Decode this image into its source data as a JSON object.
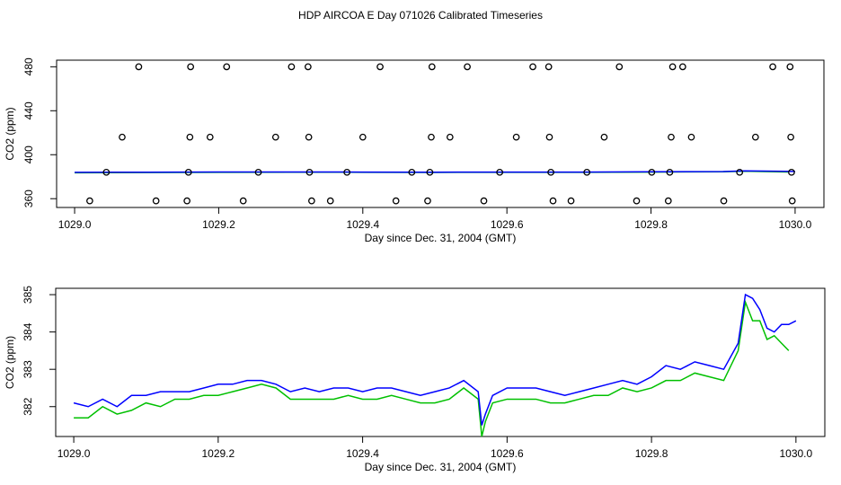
{
  "chart_data": [
    {
      "type": "scatter",
      "title": "HDP AIRCOA E  Day 071026  Calibrated Timeseries",
      "xlabel": "Day since Dec. 31, 2004 (GMT)",
      "ylabel": "CO2 (ppm)",
      "xlim": [
        1028.975,
        1030.04
      ],
      "ylim": [
        352,
        486
      ],
      "xticks": [
        {
          "value": 1029.0,
          "label": "1029.0"
        },
        {
          "value": 1029.2,
          "label": "1029.2"
        },
        {
          "value": 1029.4,
          "label": "1029.4"
        },
        {
          "value": 1029.6,
          "label": "1029.6"
        },
        {
          "value": 1029.8,
          "label": "1029.8"
        },
        {
          "value": 1030.0,
          "label": "1030.0"
        }
      ],
      "yticks": [
        360,
        400,
        440,
        480
      ],
      "color": "#000000",
      "x": [
        1029.089,
        1029.161,
        1029.211,
        1029.301,
        1029.324,
        1029.424,
        1029.496,
        1029.545,
        1029.636,
        1029.658,
        1029.756,
        1029.83,
        1029.844,
        1029.969,
        1029.993,
        1029.066,
        1029.16,
        1029.188,
        1029.279,
        1029.325,
        1029.4,
        1029.495,
        1029.521,
        1029.613,
        1029.659,
        1029.735,
        1029.828,
        1029.856,
        1029.945,
        1029.994,
        1029.044,
        1029.158,
        1029.255,
        1029.326,
        1029.378,
        1029.468,
        1029.493,
        1029.59,
        1029.661,
        1029.711,
        1029.801,
        1029.826,
        1029.923,
        1029.995,
        1029.021,
        1029.113,
        1029.156,
        1029.234,
        1029.329,
        1029.355,
        1029.446,
        1029.49,
        1029.568,
        1029.664,
        1029.689,
        1029.78,
        1029.824,
        1029.901,
        1029.996
      ],
      "values": [
        480,
        480,
        480,
        480,
        480,
        480,
        480,
        480,
        480,
        480,
        480,
        480,
        480,
        480,
        480,
        416,
        416,
        416,
        416,
        416,
        416,
        416,
        416,
        416,
        416,
        416,
        416,
        416,
        416,
        416,
        384,
        384,
        384,
        384,
        384,
        384,
        384,
        384,
        384,
        384,
        384,
        384,
        384,
        384,
        358,
        358,
        358,
        358,
        358,
        358,
        358,
        358,
        358,
        358,
        358,
        358,
        358,
        358,
        358
      ],
      "series": [
        {
          "color": "#00c000",
          "x": [
            1029.0,
            1029.1,
            1029.2,
            1029.3,
            1029.4,
            1029.5,
            1029.6,
            1029.7,
            1029.8,
            1029.9,
            1029.93,
            1029.99
          ],
          "values": [
            383.6,
            383.8,
            384.0,
            384.1,
            384.0,
            383.9,
            384.0,
            384.0,
            384.2,
            384.5,
            385.0,
            384.3
          ]
        },
        {
          "color": "#0000ff",
          "x": [
            1029.0,
            1029.1,
            1029.2,
            1029.3,
            1029.4,
            1029.5,
            1029.6,
            1029.7,
            1029.8,
            1029.9,
            1029.93,
            1030.0
          ],
          "values": [
            384.0,
            384.1,
            384.3,
            384.3,
            384.2,
            384.1,
            384.2,
            384.2,
            384.5,
            384.7,
            385.3,
            384.8
          ]
        }
      ]
    },
    {
      "type": "line",
      "xlabel": "Day since Dec. 31, 2004 (GMT)",
      "ylabel": "CO2 (ppm)",
      "xlim": [
        1028.975,
        1030.04
      ],
      "ylim": [
        381.2,
        385.17
      ],
      "xticks": [
        {
          "value": 1029.0,
          "label": "1029.0"
        },
        {
          "value": 1029.2,
          "label": "1029.2"
        },
        {
          "value": 1029.4,
          "label": "1029.4"
        },
        {
          "value": 1029.6,
          "label": "1029.6"
        },
        {
          "value": 1029.8,
          "label": "1029.8"
        },
        {
          "value": 1030.0,
          "label": "1030.0"
        }
      ],
      "yticks": [
        382,
        383,
        384,
        385
      ],
      "series": [
        {
          "color": "#00c000",
          "x": [
            1029.0,
            1029.02,
            1029.04,
            1029.06,
            1029.08,
            1029.1,
            1029.12,
            1029.14,
            1029.16,
            1029.18,
            1029.2,
            1029.22,
            1029.24,
            1029.26,
            1029.28,
            1029.3,
            1029.32,
            1029.34,
            1029.36,
            1029.38,
            1029.4,
            1029.42,
            1029.44,
            1029.46,
            1029.48,
            1029.5,
            1029.52,
            1029.54,
            1029.56,
            1029.565,
            1029.57,
            1029.58,
            1029.6,
            1029.62,
            1029.64,
            1029.66,
            1029.68,
            1029.7,
            1029.72,
            1029.74,
            1029.76,
            1029.78,
            1029.8,
            1029.82,
            1029.84,
            1029.86,
            1029.88,
            1029.9,
            1029.92,
            1029.93,
            1029.94,
            1029.95,
            1029.96,
            1029.97,
            1029.98,
            1029.99
          ],
          "values": [
            381.7,
            381.7,
            382.0,
            381.8,
            381.9,
            382.1,
            382.0,
            382.2,
            382.2,
            382.3,
            382.3,
            382.4,
            382.5,
            382.6,
            382.5,
            382.2,
            382.2,
            382.2,
            382.2,
            382.3,
            382.2,
            382.2,
            382.3,
            382.2,
            382.1,
            382.1,
            382.2,
            382.5,
            382.2,
            381.2,
            381.6,
            382.1,
            382.2,
            382.2,
            382.2,
            382.1,
            382.1,
            382.2,
            382.3,
            382.3,
            382.5,
            382.4,
            382.5,
            382.7,
            382.7,
            382.9,
            382.8,
            382.7,
            383.5,
            384.8,
            384.3,
            384.3,
            383.8,
            383.9,
            383.7,
            383.5
          ]
        },
        {
          "color": "#0000ff",
          "x": [
            1029.0,
            1029.02,
            1029.04,
            1029.06,
            1029.08,
            1029.1,
            1029.12,
            1029.14,
            1029.16,
            1029.18,
            1029.2,
            1029.22,
            1029.24,
            1029.26,
            1029.28,
            1029.3,
            1029.32,
            1029.34,
            1029.36,
            1029.38,
            1029.4,
            1029.42,
            1029.44,
            1029.46,
            1029.48,
            1029.5,
            1029.52,
            1029.54,
            1029.56,
            1029.565,
            1029.57,
            1029.58,
            1029.6,
            1029.62,
            1029.64,
            1029.66,
            1029.68,
            1029.7,
            1029.72,
            1029.74,
            1029.76,
            1029.78,
            1029.8,
            1029.82,
            1029.84,
            1029.86,
            1029.88,
            1029.9,
            1029.92,
            1029.93,
            1029.94,
            1029.95,
            1029.96,
            1029.97,
            1029.98,
            1029.99,
            1030.0
          ],
          "values": [
            382.1,
            382.0,
            382.2,
            382.0,
            382.3,
            382.3,
            382.4,
            382.4,
            382.4,
            382.5,
            382.6,
            382.6,
            382.7,
            382.7,
            382.6,
            382.4,
            382.5,
            382.4,
            382.5,
            382.5,
            382.4,
            382.5,
            382.5,
            382.4,
            382.3,
            382.4,
            382.5,
            382.7,
            382.4,
            381.5,
            381.8,
            382.3,
            382.5,
            382.5,
            382.5,
            382.4,
            382.3,
            382.4,
            382.5,
            382.6,
            382.7,
            382.6,
            382.8,
            383.1,
            383.0,
            383.2,
            383.1,
            383.0,
            383.7,
            385.0,
            384.9,
            384.6,
            384.1,
            384.0,
            384.2,
            384.2,
            384.3
          ]
        }
      ]
    }
  ]
}
